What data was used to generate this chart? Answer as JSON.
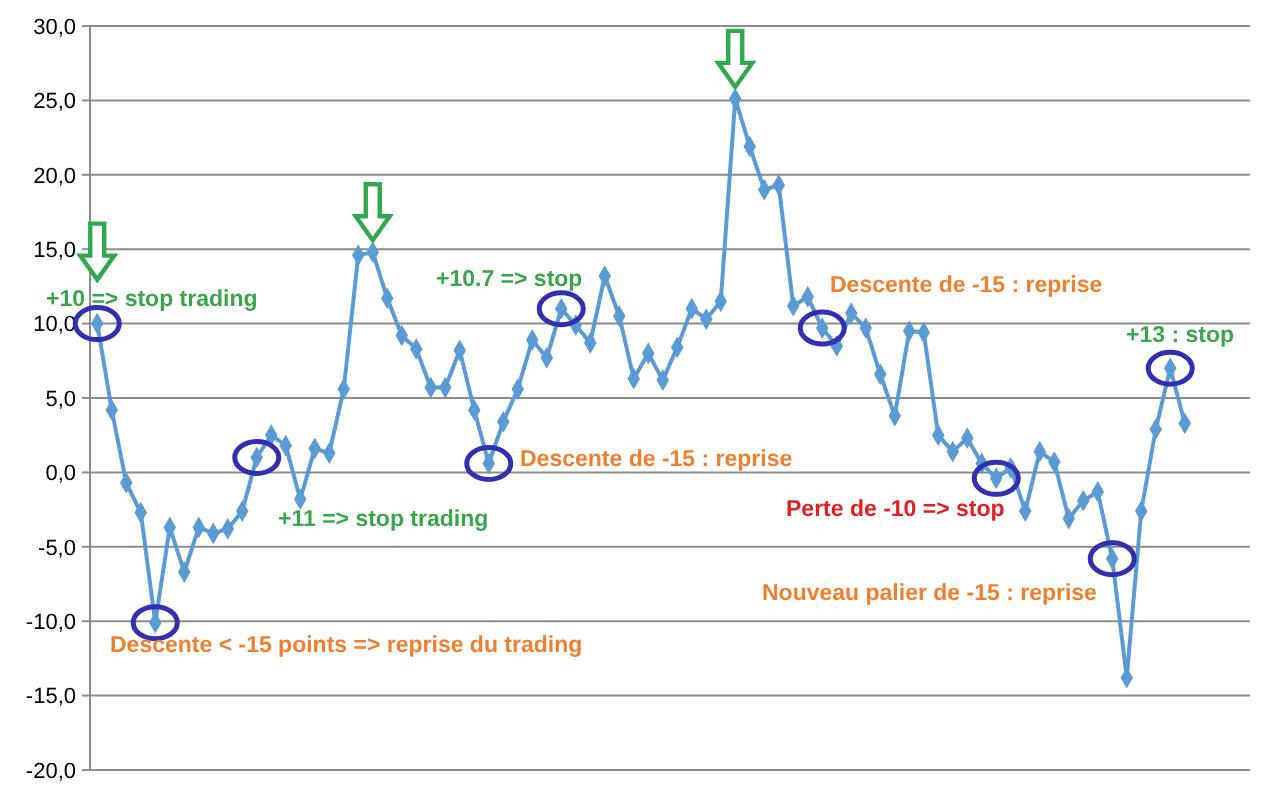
{
  "chart_data": {
    "type": "line",
    "categories": [
      null,
      null,
      null,
      null,
      null,
      null,
      null,
      null,
      null,
      null,
      null,
      null,
      null,
      null,
      null,
      null,
      null,
      null,
      null,
      null,
      null,
      null,
      null,
      null,
      null,
      null,
      null,
      null,
      null,
      null,
      null,
      null,
      null,
      null,
      null,
      null,
      null,
      null,
      null,
      null,
      null,
      null,
      null,
      null,
      null,
      null,
      null,
      null,
      null,
      null,
      null,
      null,
      null,
      null,
      null,
      null,
      null,
      null,
      null,
      null,
      null,
      null,
      null,
      null,
      null,
      null,
      null,
      null,
      null,
      null,
      null,
      null,
      null,
      null,
      null,
      null,
      null,
      null,
      null,
      null
    ],
    "series": [
      {
        "color": "#5b9bd5",
        "values": [
          10.0,
          4.2,
          -0.7,
          -2.7,
          -10.1,
          -3.7,
          -6.7,
          -3.7,
          -4.1,
          -3.8,
          -2.6,
          1.0,
          2.5,
          1.8,
          -1.8,
          1.6,
          1.3,
          5.6,
          14.6,
          14.8,
          11.7,
          9.2,
          8.3,
          5.7,
          5.7,
          8.2,
          4.2,
          0.6,
          3.4,
          5.6,
          8.9,
          7.7,
          11.0,
          9.9,
          8.7,
          13.2,
          10.5,
          6.3,
          8.0,
          6.2,
          8.4,
          11.0,
          10.3,
          11.5,
          25.1,
          21.9,
          19.0,
          19.3,
          11.2,
          11.8,
          9.7,
          8.5,
          10.7,
          9.7,
          6.6,
          3.8,
          9.5,
          9.4,
          2.5,
          1.4,
          2.3,
          0.6,
          -0.4,
          0.3,
          -2.6,
          1.4,
          0.7,
          -3.1,
          -1.9,
          -1.3,
          -5.8,
          -13.8,
          -2.6,
          2.9,
          7.0,
          3.3,
          null,
          null,
          null,
          null
        ]
      }
    ],
    "ylim": [
      -20,
      30
    ],
    "yticks": [
      {
        "value": -20,
        "label": "-20,0"
      },
      {
        "value": -15,
        "label": "-15,0"
      },
      {
        "value": -10,
        "label": "-10,0"
      },
      {
        "value": -5,
        "label": "-5,0"
      },
      {
        "value": 0,
        "label": "0,0"
      },
      {
        "value": 5,
        "label": "5,0"
      },
      {
        "value": 10,
        "label": "10,0"
      },
      {
        "value": 15,
        "label": "15,0"
      },
      {
        "value": 20,
        "label": "20,0"
      },
      {
        "value": 25,
        "label": "25,0"
      },
      {
        "value": 30,
        "label": "30,0"
      }
    ],
    "grid": "y",
    "tick_labels": "y",
    "marker": "diamond",
    "line_style": "solid",
    "annotations": [
      "+10 => stop trading",
      "Descente < -15 points => reprise du trading",
      "+11 => stop trading",
      "+10.7 => stop",
      "Descente de -15 : reprise",
      "Descente de -15 : reprise",
      "Perte de -10 => stop",
      "Nouveau palier de -15 : reprise",
      "+13 : stop"
    ]
  }
}
